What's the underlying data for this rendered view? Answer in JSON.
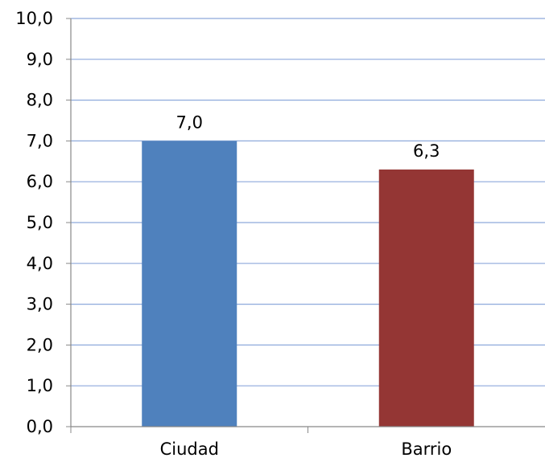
{
  "chart_data": {
    "type": "bar",
    "title": "",
    "xlabel": "",
    "ylabel": "",
    "categories": [
      "Ciudad",
      "Barrio"
    ],
    "values": [
      7.0,
      6.3
    ],
    "data_labels": [
      "7,0",
      "6,3"
    ],
    "bar_colors": [
      "#4F81BD",
      "#943634"
    ],
    "ylim": [
      0,
      10
    ],
    "y_ticks": [
      0,
      1,
      2,
      3,
      4,
      5,
      6,
      7,
      8,
      9,
      10
    ],
    "y_tick_labels": [
      "0,0",
      "1,0",
      "2,0",
      "3,0",
      "4,0",
      "5,0",
      "6,0",
      "7,0",
      "8,0",
      "9,0",
      "10,0"
    ],
    "grid": true,
    "gridline_color": "#8EA9DB",
    "axis_color": "#888888",
    "legend": "none"
  }
}
